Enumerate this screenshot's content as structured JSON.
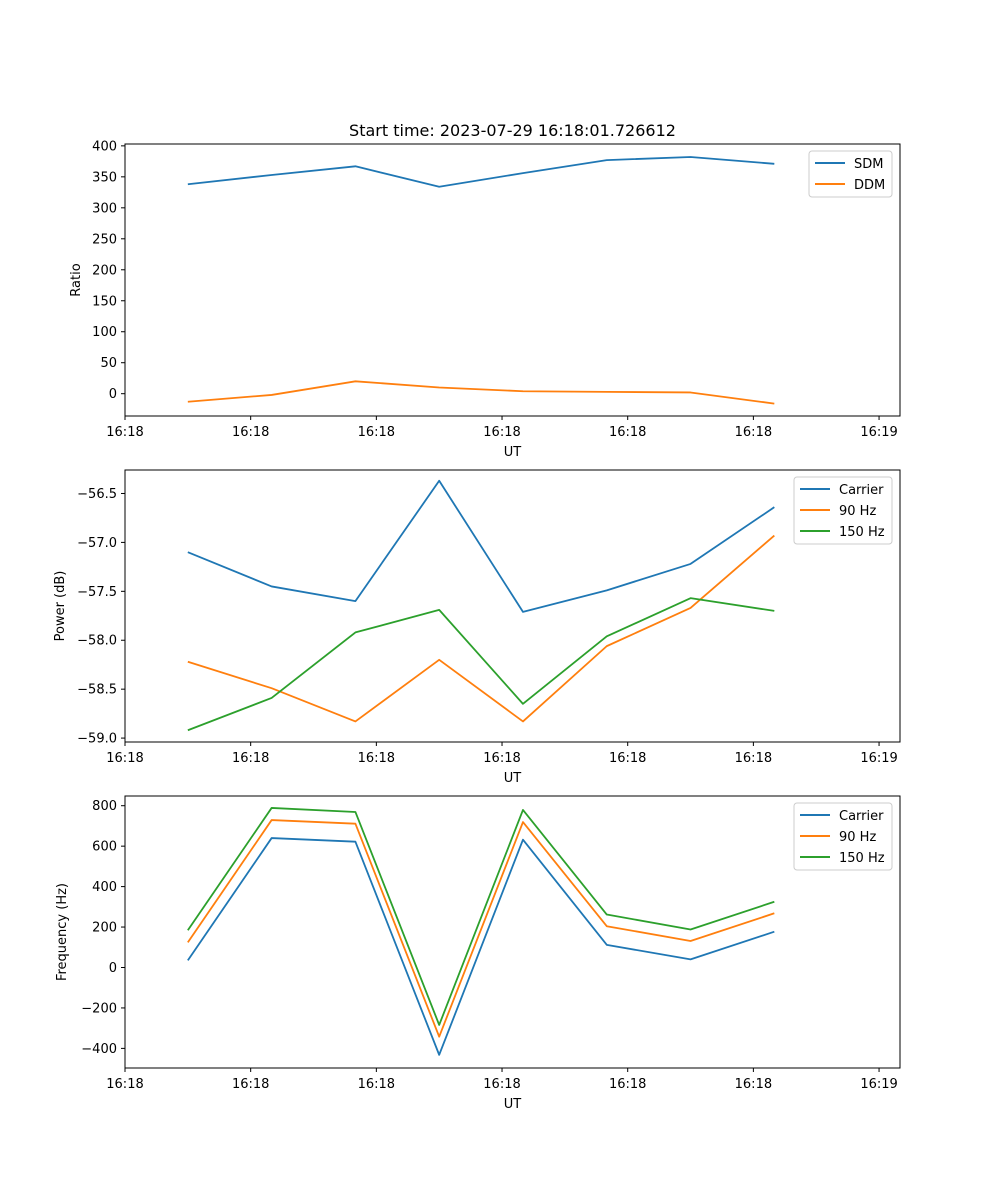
{
  "chart_data": [
    {
      "type": "line",
      "title": "Start time: 2023-07-29 16:18:01.726612",
      "xlabel": "UT",
      "ylabel": "Ratio",
      "x": [
        0,
        1,
        2,
        3,
        4,
        5,
        6,
        7
      ],
      "xlim": [
        -0.75,
        8.5
      ],
      "xticks": [
        -0.75,
        0.75,
        2.25,
        3.75,
        5.25,
        6.75,
        8.25
      ],
      "xtick_labels": [
        "16:18",
        "16:18",
        "16:18",
        "16:18",
        "16:18",
        "16:18",
        "16:19"
      ],
      "ylim": [
        -36,
        403
      ],
      "yticks": [
        0,
        50,
        100,
        150,
        200,
        250,
        300,
        350,
        400
      ],
      "ytick_labels": [
        "0",
        "50",
        "100",
        "150",
        "200",
        "250",
        "300",
        "350",
        "400"
      ],
      "legend": "top-right",
      "series": [
        {
          "name": "SDM",
          "color": "#1f77b4",
          "values": [
            338,
            353,
            367,
            334,
            356,
            377,
            382,
            371
          ]
        },
        {
          "name": "DDM",
          "color": "#ff7f0e",
          "values": [
            -13,
            -2,
            20,
            10,
            4,
            3,
            2,
            -16
          ]
        }
      ]
    },
    {
      "type": "line",
      "title": "",
      "xlabel": "UT",
      "ylabel": "Power (dB)",
      "x": [
        0,
        1,
        2,
        3,
        4,
        5,
        6,
        7
      ],
      "xlim": [
        -0.75,
        8.5
      ],
      "xticks": [
        -0.75,
        0.75,
        2.25,
        3.75,
        5.25,
        6.75,
        8.25
      ],
      "xtick_labels": [
        "16:18",
        "16:18",
        "16:18",
        "16:18",
        "16:18",
        "16:18",
        "16:19"
      ],
      "ylim": [
        -59.04,
        -56.26
      ],
      "yticks": [
        -59.0,
        -58.5,
        -58.0,
        -57.5,
        -57.0,
        -56.5
      ],
      "ytick_labels": [
        "−59.0",
        "−58.5",
        "−58.0",
        "−57.5",
        "−57.0",
        "−56.5"
      ],
      "legend": "top-right",
      "series": [
        {
          "name": "Carrier",
          "color": "#1f77b4",
          "values": [
            -57.1,
            -57.45,
            -57.6,
            -56.37,
            -57.71,
            -57.49,
            -57.22,
            -56.64
          ]
        },
        {
          "name": "90 Hz",
          "color": "#ff7f0e",
          "values": [
            -58.22,
            -58.49,
            -58.83,
            -58.2,
            -58.83,
            -58.06,
            -57.67,
            -56.93
          ]
        },
        {
          "name": "150 Hz",
          "color": "#2ca02c",
          "values": [
            -58.92,
            -58.59,
            -57.92,
            -57.69,
            -58.65,
            -57.96,
            -57.57,
            -57.7
          ]
        }
      ]
    },
    {
      "type": "line",
      "title": "",
      "xlabel": "UT",
      "ylabel": "Frequency (Hz)",
      "x": [
        0,
        1,
        2,
        3,
        4,
        5,
        6,
        7
      ],
      "xlim": [
        -0.75,
        8.5
      ],
      "xticks": [
        -0.75,
        0.75,
        2.25,
        3.75,
        5.25,
        6.75,
        8.25
      ],
      "xtick_labels": [
        "16:18",
        "16:18",
        "16:18",
        "16:18",
        "16:18",
        "16:18",
        "16:19"
      ],
      "ylim": [
        -497,
        848
      ],
      "yticks": [
        -400,
        -200,
        0,
        200,
        400,
        600,
        800
      ],
      "ytick_labels": [
        "−400",
        "−200",
        "0",
        "200",
        "400",
        "600",
        "800"
      ],
      "legend": "top-right",
      "series": [
        {
          "name": "Carrier",
          "color": "#1f77b4",
          "values": [
            35,
            640,
            622,
            -432,
            632,
            112,
            40,
            177
          ]
        },
        {
          "name": "90 Hz",
          "color": "#ff7f0e",
          "values": [
            124,
            729,
            711,
            -342,
            719,
            204,
            131,
            268
          ]
        },
        {
          "name": "150 Hz",
          "color": "#2ca02c",
          "values": [
            184,
            789,
            769,
            -284,
            779,
            262,
            188,
            325
          ]
        }
      ]
    }
  ]
}
